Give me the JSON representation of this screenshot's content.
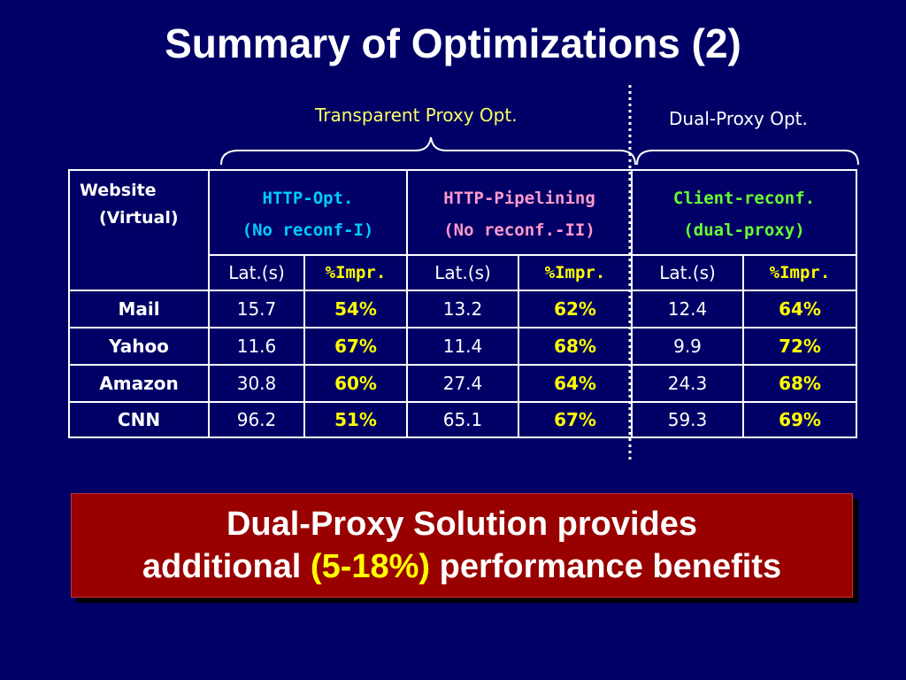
{
  "title": "Summary of Optimizations (2)",
  "groups": {
    "transparent": "Transparent Proxy Opt.",
    "dual": "Dual-Proxy Opt."
  },
  "table": {
    "website_header": [
      "Website",
      "(Virtual)"
    ],
    "columns": [
      {
        "line1": "HTTP-Opt.",
        "line2": "(No reconf-I)",
        "color": "#00ccff"
      },
      {
        "line1": "HTTP-Pipelining",
        "line2": "(No reconf.-II)",
        "color": "#ff99cc"
      },
      {
        "line1": "Client-reconf.",
        "line2": "(dual-proxy)",
        "color": "#66ff33"
      }
    ],
    "sub_lat": "Lat.(s)",
    "sub_impr": "%Impr.",
    "rows": [
      {
        "site": "Mail",
        "values": [
          "15.7",
          "54%",
          "13.2",
          "62%",
          "12.4",
          "64%"
        ]
      },
      {
        "site": "Yahoo",
        "values": [
          "11.6",
          "67%",
          "11.4",
          "68%",
          "9.9",
          "72%"
        ]
      },
      {
        "site": "Amazon",
        "values": [
          "30.8",
          "60%",
          "27.4",
          "64%",
          "24.3",
          "68%"
        ]
      },
      {
        "site": "CNN",
        "values": [
          "96.2",
          "51%",
          "65.1",
          "67%",
          "59.3",
          "69%"
        ]
      }
    ]
  },
  "banner": {
    "line1": "Dual-Proxy Solution provides",
    "line2_pre": "additional ",
    "line2_highlight": "(5-18%)",
    "line2_post": " performance benefits"
  }
}
